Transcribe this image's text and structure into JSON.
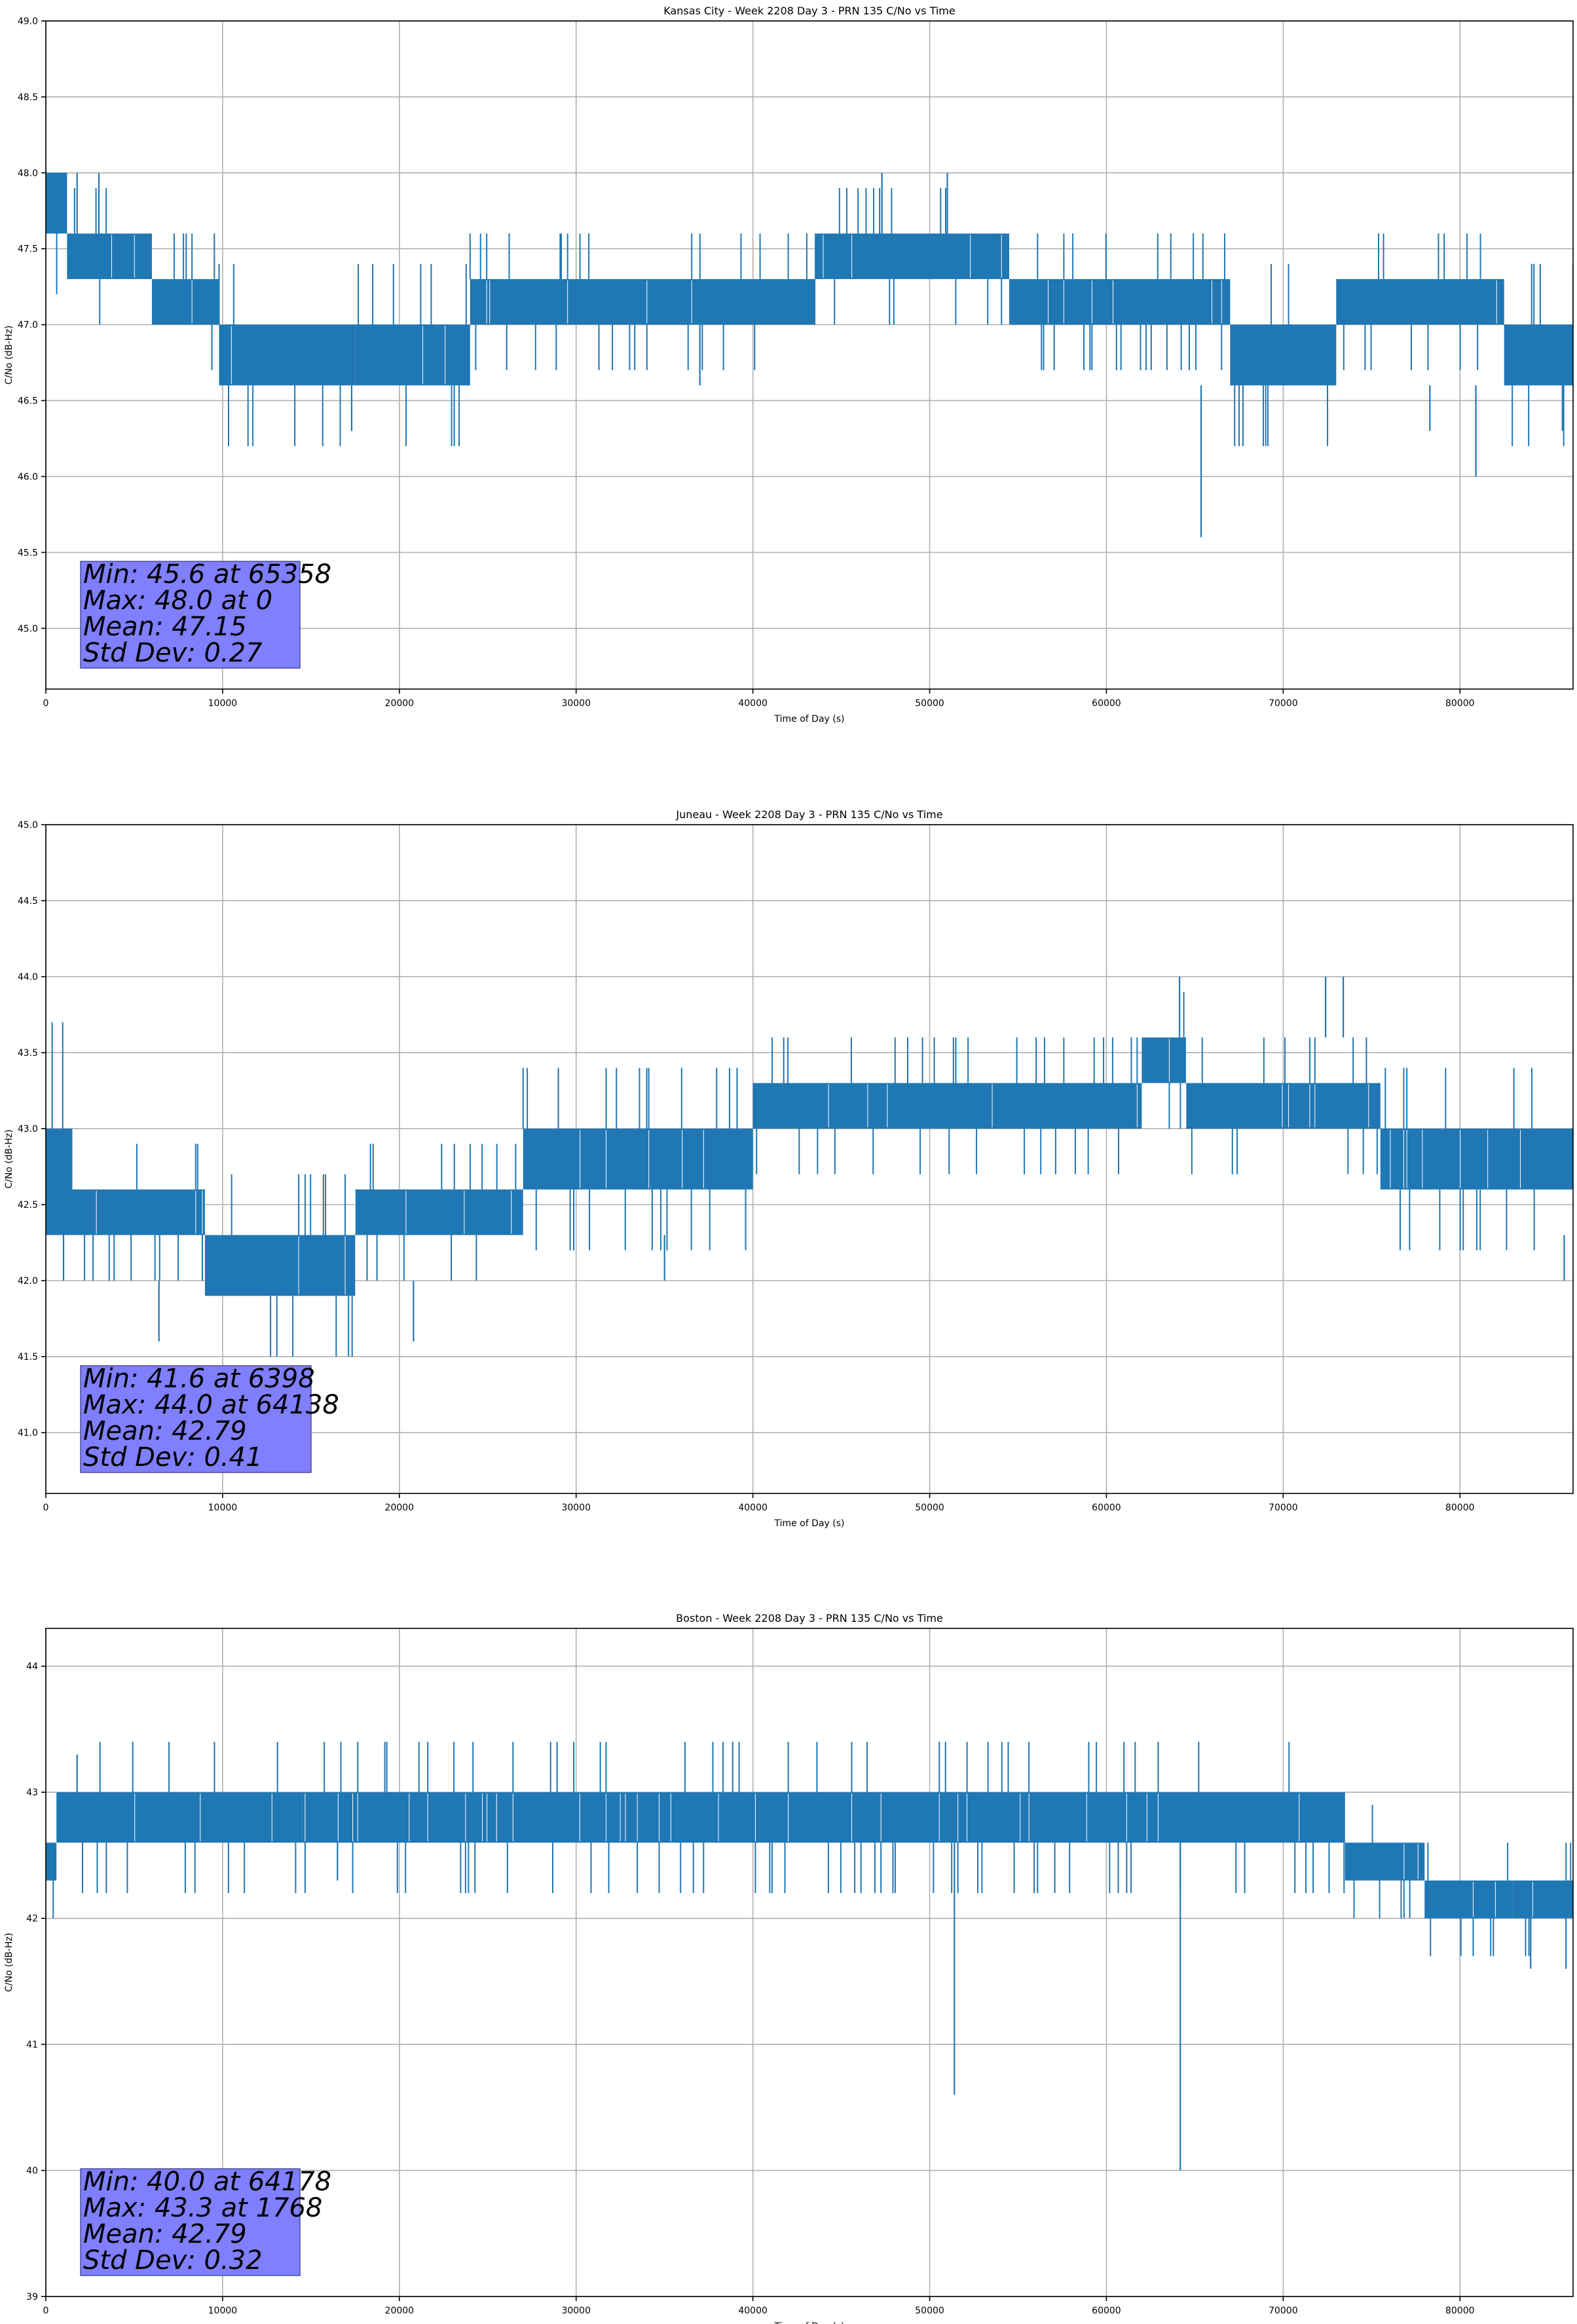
{
  "chart_data": [
    {
      "type": "line",
      "title": "Kansas City - Week 2208 Day 3 - PRN 135 C/No vs Time",
      "xlabel": "Time of Day (s)",
      "ylabel": "C/No (dB-Hz)",
      "xlim": [
        0,
        86400
      ],
      "ylim": [
        44.6,
        49.0
      ],
      "xticks": [
        0,
        10000,
        20000,
        30000,
        40000,
        50000,
        60000,
        70000,
        80000
      ],
      "yticks": [
        45.0,
        45.5,
        46.0,
        46.5,
        47.0,
        47.5,
        48.0,
        48.5,
        49.0
      ],
      "ytick_decimals": 1,
      "grid": true,
      "color": "#1f77b4",
      "band_segments": [
        {
          "x0": 0,
          "x1": 1200,
          "low": 47.6,
          "high": 48.0
        },
        {
          "x0": 1200,
          "x1": 6000,
          "low": 47.3,
          "high": 47.6
        },
        {
          "x0": 6000,
          "x1": 9800,
          "low": 47.0,
          "high": 47.3
        },
        {
          "x0": 9800,
          "x1": 17500,
          "low": 46.6,
          "high": 47.0
        },
        {
          "x0": 17500,
          "x1": 24000,
          "low": 46.6,
          "high": 47.0
        },
        {
          "x0": 24000,
          "x1": 43500,
          "low": 47.0,
          "high": 47.3
        },
        {
          "x0": 43500,
          "x1": 54500,
          "low": 47.3,
          "high": 47.6
        },
        {
          "x0": 54500,
          "x1": 67000,
          "low": 47.0,
          "high": 47.3
        },
        {
          "x0": 67000,
          "x1": 73000,
          "low": 46.6,
          "high": 47.0
        },
        {
          "x0": 73000,
          "x1": 82500,
          "low": 47.0,
          "high": 47.3
        },
        {
          "x0": 82500,
          "x1": 86400,
          "low": 46.6,
          "high": 47.0
        }
      ],
      "spikes": [
        {
          "x": 0,
          "low": 47.6,
          "high": 48.0
        },
        {
          "x": 1768,
          "low": 47.6,
          "high": 48.0
        },
        {
          "x": 3000,
          "low": 47.6,
          "high": 48.0
        },
        {
          "x": 17300,
          "low": 46.3,
          "high": 46.6
        },
        {
          "x": 29100,
          "low": 47.3,
          "high": 47.6
        },
        {
          "x": 37000,
          "low": 46.6,
          "high": 47.0
        },
        {
          "x": 47300,
          "low": 47.6,
          "high": 48.0
        },
        {
          "x": 51000,
          "low": 47.6,
          "high": 48.0
        },
        {
          "x": 65358,
          "low": 45.6,
          "high": 46.6
        },
        {
          "x": 78300,
          "low": 46.3,
          "high": 46.6
        },
        {
          "x": 80900,
          "low": 46.0,
          "high": 46.6
        },
        {
          "x": 85800,
          "low": 46.3,
          "high": 46.6
        }
      ],
      "stats_box": {
        "lines": [
          "Min: 45.6 at 65358",
          "Max: 48.0 at 0",
          "Mean: 47.15",
          "Std Dev: 0.27"
        ]
      }
    },
    {
      "type": "line",
      "title": "Juneau - Week 2208 Day 3 - PRN 135 C/No vs Time",
      "xlabel": "Time of Day (s)",
      "ylabel": "C/No (dB-Hz)",
      "xlim": [
        0,
        86400
      ],
      "ylim": [
        40.6,
        45.0
      ],
      "xticks": [
        0,
        10000,
        20000,
        30000,
        40000,
        50000,
        60000,
        70000,
        80000
      ],
      "yticks": [
        41.0,
        41.5,
        42.0,
        42.5,
        43.0,
        43.5,
        44.0,
        44.5,
        45.0
      ],
      "ytick_decimals": 1,
      "grid": true,
      "color": "#1f77b4",
      "band_segments": [
        {
          "x0": 0,
          "x1": 1500,
          "low": 42.3,
          "high": 43.0
        },
        {
          "x0": 1500,
          "x1": 9000,
          "low": 42.3,
          "high": 42.6
        },
        {
          "x0": 9000,
          "x1": 17500,
          "low": 41.9,
          "high": 42.3
        },
        {
          "x0": 17500,
          "x1": 27000,
          "low": 42.3,
          "high": 42.6
        },
        {
          "x0": 27000,
          "x1": 36000,
          "low": 42.6,
          "high": 43.0
        },
        {
          "x0": 36000,
          "x1": 40000,
          "low": 42.6,
          "high": 43.0
        },
        {
          "x0": 40000,
          "x1": 56500,
          "low": 43.0,
          "high": 43.3
        },
        {
          "x0": 56500,
          "x1": 62000,
          "low": 43.0,
          "high": 43.3
        },
        {
          "x0": 62000,
          "x1": 64500,
          "low": 43.3,
          "high": 43.6
        },
        {
          "x0": 64500,
          "x1": 75500,
          "low": 43.0,
          "high": 43.3
        },
        {
          "x0": 75500,
          "x1": 86400,
          "low": 42.6,
          "high": 43.0
        }
      ],
      "spikes": [
        {
          "x": 1000,
          "low": 42.0,
          "high": 42.3
        },
        {
          "x": 6398,
          "low": 41.6,
          "high": 42.0
        },
        {
          "x": 20800,
          "low": 41.6,
          "high": 42.0
        },
        {
          "x": 35000,
          "low": 42.0,
          "high": 42.3
        },
        {
          "x": 64138,
          "low": 43.6,
          "high": 44.0
        },
        {
          "x": 72400,
          "low": 43.6,
          "high": 44.0
        },
        {
          "x": 73400,
          "low": 43.6,
          "high": 44.0
        },
        {
          "x": 85900,
          "low": 42.0,
          "high": 42.3
        }
      ],
      "stats_box": {
        "lines": [
          "Min: 41.6 at 6398",
          "Max: 44.0 at 64138",
          "Mean: 42.79",
          "Std Dev: 0.41"
        ]
      }
    },
    {
      "type": "line",
      "title": "Boston - Week 2208 Day 3 - PRN 135 C/No vs Time",
      "xlabel": "Time of Day (s)",
      "ylabel": "C/No (dB-Hz)",
      "xlim": [
        0,
        86400
      ],
      "ylim": [
        39.0,
        44.3
      ],
      "xticks": [
        0,
        10000,
        20000,
        30000,
        40000,
        50000,
        60000,
        70000,
        80000
      ],
      "yticks": [
        39,
        40,
        41,
        42,
        43,
        44
      ],
      "ytick_decimals": 0,
      "grid": true,
      "color": "#1f77b4",
      "band_segments": [
        {
          "x0": 0,
          "x1": 600,
          "low": 42.3,
          "high": 42.6
        },
        {
          "x0": 600,
          "x1": 14500,
          "low": 42.6,
          "high": 43.0
        },
        {
          "x0": 14500,
          "x1": 25500,
          "low": 42.6,
          "high": 43.0
        },
        {
          "x0": 25500,
          "x1": 42000,
          "low": 42.6,
          "high": 43.0
        },
        {
          "x0": 42000,
          "x1": 59000,
          "low": 42.6,
          "high": 43.0
        },
        {
          "x0": 59000,
          "x1": 73500,
          "low": 42.6,
          "high": 43.0
        },
        {
          "x0": 73500,
          "x1": 78000,
          "low": 42.3,
          "high": 42.6
        },
        {
          "x0": 78000,
          "x1": 83000,
          "low": 42.0,
          "high": 42.3
        },
        {
          "x0": 83000,
          "x1": 86400,
          "low": 42.0,
          "high": 42.3
        }
      ],
      "spikes": [
        {
          "x": 1768,
          "low": 43.0,
          "high": 43.3
        },
        {
          "x": 16500,
          "low": 42.3,
          "high": 42.6
        },
        {
          "x": 51400,
          "low": 40.6,
          "high": 42.6
        },
        {
          "x": 64178,
          "low": 40.0,
          "high": 42.6
        },
        {
          "x": 84000,
          "low": 41.6,
          "high": 42.0
        },
        {
          "x": 86000,
          "low": 41.6,
          "high": 42.0
        }
      ],
      "stats_box": {
        "lines": [
          "Min: 40.0 at 64178",
          "Max: 43.3 at 1768",
          "Mean: 42.79",
          "Std Dev: 0.32"
        ]
      }
    }
  ]
}
